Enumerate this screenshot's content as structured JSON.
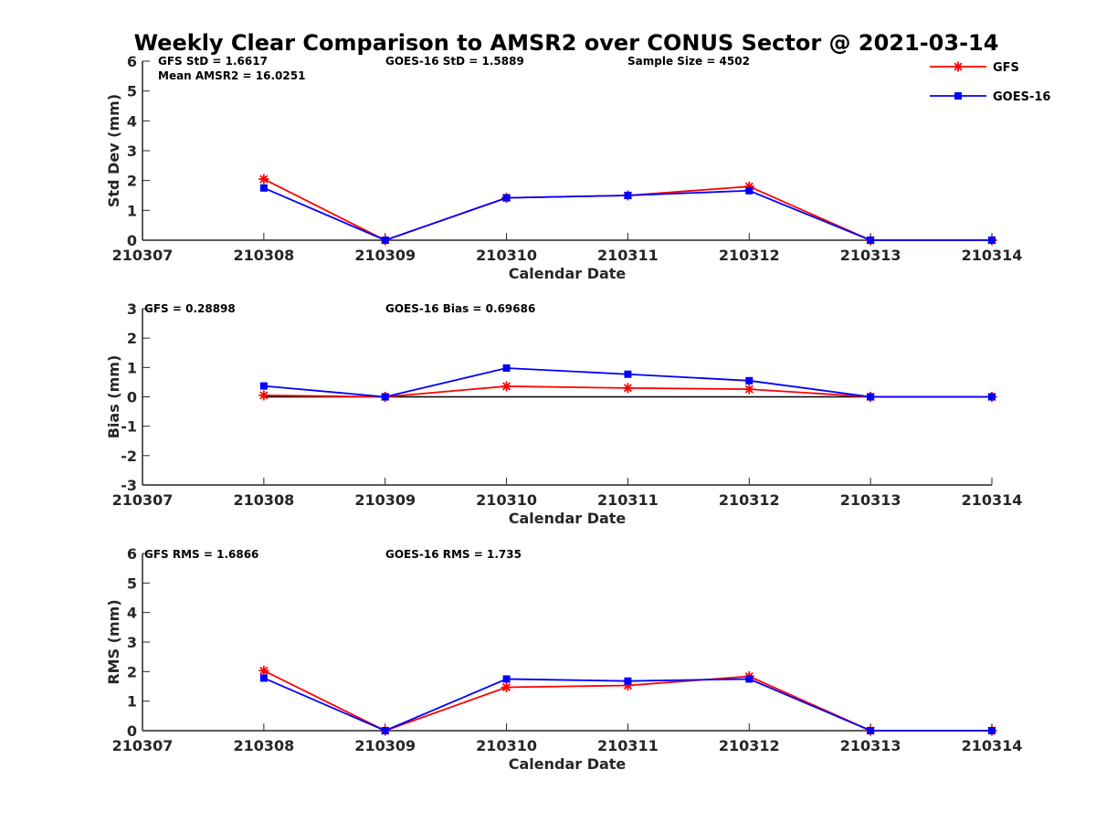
{
  "title": "Weekly Clear Comparison to AMSR2 over CONUS Sector @ 2021-03-14",
  "legend": {
    "position": "top-right",
    "entries": [
      {
        "label": "GFS",
        "color": "#ff0000",
        "marker": "asterisk"
      },
      {
        "label": "GOES-16",
        "color": "#0000ff",
        "marker": "square"
      }
    ]
  },
  "chart_data": [
    {
      "type": "line",
      "x": [
        "210307",
        "210308",
        "210309",
        "210310",
        "210311",
        "210312",
        "210313",
        "210314"
      ],
      "xlabel": "Calendar Date",
      "ylabel": "Std Dev (mm)",
      "ylim": [
        0,
        6
      ],
      "yticks": [
        "0",
        "1",
        "2",
        "3",
        "4",
        "5",
        "6"
      ],
      "zero_line": false,
      "annotations": [
        "GFS StD = 1.6617",
        "GOES-16 StD = 1.5889",
        "Sample Size = 4502",
        "Mean AMSR2 = 16.0251"
      ],
      "series": [
        {
          "name": "GFS",
          "color": "#ff0000",
          "marker": "asterisk",
          "values": [
            null,
            2.05,
            0.0,
            1.42,
            1.5,
            1.8,
            0.0,
            0.0
          ]
        },
        {
          "name": "GOES-16",
          "color": "#0000ff",
          "marker": "square",
          "values": [
            null,
            1.75,
            0.0,
            1.42,
            1.5,
            1.66,
            0.0,
            0.0
          ]
        }
      ]
    },
    {
      "type": "line",
      "x": [
        "210307",
        "210308",
        "210309",
        "210310",
        "210311",
        "210312",
        "210313",
        "210314"
      ],
      "xlabel": "Calendar Date",
      "ylabel": "Bias (mm)",
      "ylim": [
        -3,
        3
      ],
      "yticks": [
        "-3",
        "-2",
        "-1",
        "0",
        "1",
        "2",
        "3"
      ],
      "zero_line": true,
      "annotations": [
        "GFS = 0.28898",
        "GOES-16 Bias  = 0.69686"
      ],
      "series": [
        {
          "name": "GFS",
          "color": "#ff0000",
          "marker": "asterisk",
          "values": [
            null,
            0.05,
            0.0,
            0.36,
            0.3,
            0.26,
            0.0,
            0.0
          ]
        },
        {
          "name": "GOES-16",
          "color": "#0000ff",
          "marker": "square",
          "values": [
            null,
            0.37,
            0.0,
            0.98,
            0.77,
            0.55,
            0.0,
            0.0
          ]
        }
      ]
    },
    {
      "type": "line",
      "x": [
        "210307",
        "210308",
        "210309",
        "210310",
        "210311",
        "210312",
        "210313",
        "210314"
      ],
      "xlabel": "Calendar Date",
      "ylabel": "RMS (mm)",
      "ylim": [
        0,
        6
      ],
      "yticks": [
        "0",
        "1",
        "2",
        "3",
        "4",
        "5",
        "6"
      ],
      "zero_line": false,
      "annotations": [
        "GFS RMS = 1.6866",
        "GOES-16 RMS = 1.735"
      ],
      "series": [
        {
          "name": "GFS",
          "color": "#ff0000",
          "marker": "asterisk",
          "values": [
            null,
            2.03,
            0.0,
            1.47,
            1.53,
            1.84,
            0.0,
            0.0
          ]
        },
        {
          "name": "GOES-16",
          "color": "#0000ff",
          "marker": "square",
          "values": [
            null,
            1.78,
            0.0,
            1.75,
            1.68,
            1.75,
            0.0,
            0.0
          ]
        }
      ]
    }
  ]
}
